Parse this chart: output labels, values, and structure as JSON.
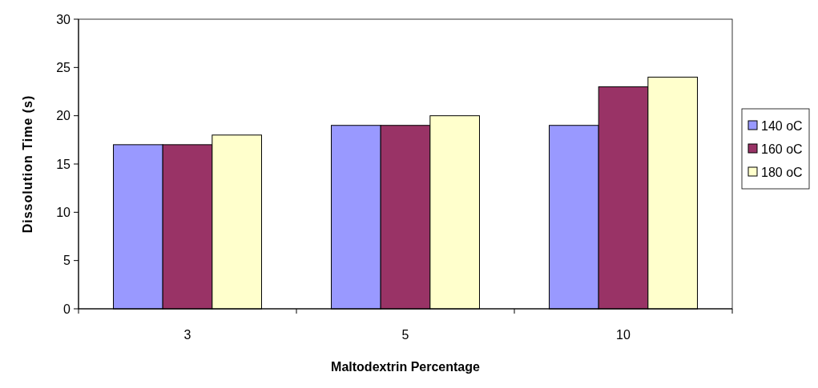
{
  "chart_data": {
    "type": "bar",
    "xlabel": "Maltodextrin Percentage",
    "ylabel": "Dissolution Time (s)",
    "categories": [
      "3",
      "5",
      "10"
    ],
    "series": [
      {
        "name": "140 oC",
        "color": "#9999ff",
        "values": [
          17,
          19,
          19
        ]
      },
      {
        "name": "160 oC",
        "color": "#993366",
        "values": [
          17,
          19,
          23
        ]
      },
      {
        "name": "180 oC",
        "color": "#ffffcc",
        "values": [
          18,
          20,
          24
        ]
      }
    ],
    "ylim": [
      0,
      30
    ],
    "yticks": [
      0,
      5,
      10,
      15,
      20,
      25,
      30
    ],
    "grid": false,
    "legend": "right"
  }
}
